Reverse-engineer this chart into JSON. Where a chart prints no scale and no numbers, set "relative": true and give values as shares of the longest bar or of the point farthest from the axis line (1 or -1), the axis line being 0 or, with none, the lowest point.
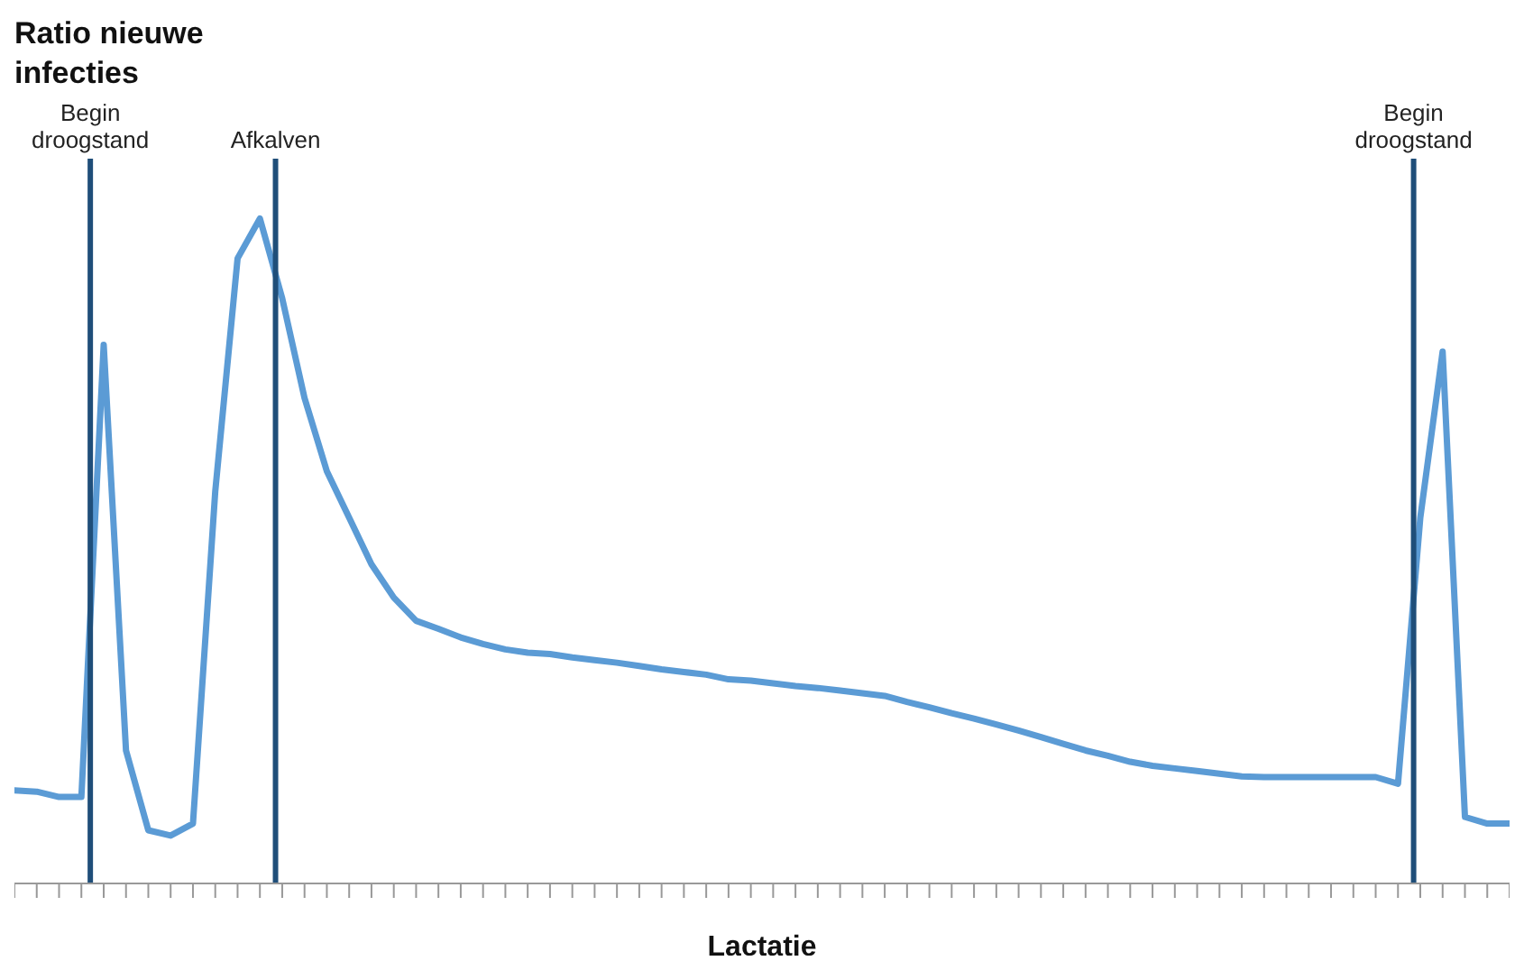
{
  "chart_data": {
    "type": "line",
    "ylabel": "Ratio nieuwe infecties",
    "xlabel": "Lactatie",
    "relative": true,
    "marker": "none",
    "line_style": "solid",
    "grid": false,
    "legend": false,
    "categories": [
      null,
      null,
      null,
      null,
      null,
      null,
      null,
      null,
      null,
      null,
      null,
      null,
      null,
      null,
      null,
      null,
      null,
      null,
      null,
      null,
      null,
      null,
      null,
      null,
      null,
      null,
      null,
      null,
      null,
      null,
      null,
      null,
      null,
      null,
      null,
      null,
      null,
      null,
      null,
      null,
      null,
      null,
      null,
      null,
      null,
      null,
      null,
      null,
      null,
      null,
      null,
      null,
      null,
      null,
      null,
      null,
      null,
      null,
      null,
      null,
      null,
      null,
      null,
      null,
      null,
      null,
      null,
      null
    ],
    "series": [
      {
        "color": "#5b9bd5",
        "values": [
          0.14,
          0.138,
          0.13,
          0.13,
          0.81,
          0.2,
          0.08,
          0.072,
          0.09,
          0.59,
          0.94,
          1.0,
          0.88,
          0.73,
          0.62,
          0.55,
          0.48,
          0.43,
          0.395,
          0.383,
          0.37,
          0.36,
          0.352,
          0.347,
          0.345,
          0.34,
          0.336,
          0.332,
          0.327,
          0.322,
          0.318,
          0.314,
          0.307,
          0.305,
          0.301,
          0.297,
          0.294,
          0.29,
          0.286,
          0.282,
          0.273,
          0.265,
          0.256,
          0.248,
          0.239,
          0.23,
          0.22,
          0.21,
          0.2,
          0.192,
          0.183,
          0.177,
          0.173,
          0.169,
          0.165,
          0.161,
          0.16,
          0.16,
          0.16,
          0.16,
          0.16,
          0.16,
          0.15,
          0.55,
          0.8,
          0.1,
          0.09,
          0.09
        ]
      }
    ],
    "annotations": [
      "Begin droogstand",
      "Afkalven",
      "Begin droogstand"
    ]
  }
}
